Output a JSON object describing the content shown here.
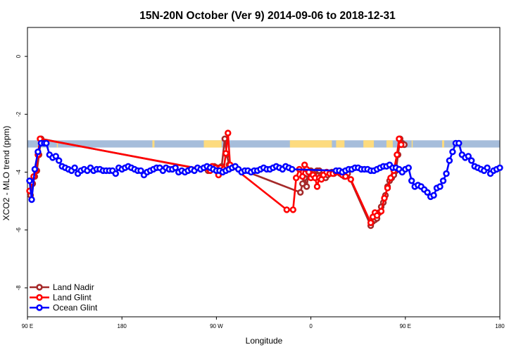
{
  "chart_data": {
    "type": "line",
    "title": "15N-20N October (Ver 9)   2014-09-06 to 2018-12-31",
    "xlabel": "Longitude",
    "ylabel": "XCO2 - MLO trend (ppm)",
    "x_range_deg_east": [
      90,
      450
    ],
    "ylim": [
      -9,
      1
    ],
    "x_ticks": [
      {
        "x": 90,
        "label": "90 E"
      },
      {
        "x": 180,
        "label": "180"
      },
      {
        "x": 270,
        "label": "90 W"
      },
      {
        "x": 360,
        "label": "0"
      },
      {
        "x": 450,
        "label": "90 E"
      },
      {
        "x": 540,
        "label": "180"
      }
    ],
    "y_ticks": [
      {
        "y": 0,
        "label": "0"
      },
      {
        "y": -2,
        "label": "-2"
      },
      {
        "y": -4,
        "label": "-4"
      },
      {
        "y": -6,
        "label": "-6"
      },
      {
        "y": -8,
        "label": "-8"
      }
    ],
    "grid": false,
    "legend_position": "bottom-left",
    "land_ocean_band": {
      "y_range": [
        -3.15,
        -2.9
      ],
      "ocean_color": "#a6bddb",
      "land_color": "#fddb7e",
      "land_segments": [
        [
          118,
          119
        ],
        [
          209,
          211
        ],
        [
          258,
          275
        ],
        [
          340,
          380
        ],
        [
          384,
          392
        ],
        [
          410,
          420
        ],
        [
          432,
          438
        ],
        [
          456,
          457
        ],
        [
          485,
          487
        ]
      ]
    },
    "series": [
      {
        "name": "Land Nadir",
        "color": "#a52a2a",
        "x": [
          93,
          95,
          97,
          99,
          101,
          103,
          262,
          264,
          266,
          268,
          271,
          273,
          275,
          278,
          280,
          282,
          350,
          352,
          354,
          356,
          358,
          360,
          362,
          364,
          366,
          368,
          370,
          372,
          374,
          376,
          378,
          380,
          382,
          384,
          386,
          388,
          390,
          392,
          395,
          417,
          419,
          421,
          423,
          425,
          427,
          429,
          431,
          433,
          435,
          437,
          439,
          441,
          443,
          445,
          447,
          449
        ],
        "y": [
          -4.8,
          -4.4,
          -4.15,
          -3.95,
          -3.4,
          -2.85,
          -3.95,
          -3.9,
          -3.85,
          -3.8,
          -3.85,
          -3.85,
          -3.8,
          -2.85,
          -3.4,
          -3.75,
          -4.7,
          -4.4,
          -4.2,
          -4.5,
          -4.0,
          -3.95,
          -4.1,
          -4.0,
          -3.95,
          -3.95,
          -4.1,
          -4.15,
          -4.2,
          -4.1,
          -4.05,
          -4.0,
          -4.05,
          -4.0,
          -4.0,
          -4.05,
          -4.1,
          -4.15,
          -4.05,
          -5.85,
          -5.7,
          -5.65,
          -5.6,
          -5.4,
          -5.2,
          -5.05,
          -4.8,
          -4.5,
          -4.3,
          -4.2,
          -4.1,
          -3.95,
          -3.4,
          -2.85,
          -3.0,
          -3.05
        ]
      },
      {
        "name": "Land Glint",
        "color": "#ff0000",
        "x": [
          92,
          94,
          96,
          98,
          100,
          102,
          264,
          266,
          269,
          272,
          274,
          277,
          279,
          281,
          283,
          337,
          343,
          346,
          349,
          352,
          354,
          356,
          358,
          360,
          362,
          364,
          366,
          368,
          370,
          372,
          375,
          378,
          381,
          384,
          387,
          390,
          393,
          398,
          417,
          419,
          421,
          423,
          427,
          430,
          433,
          436,
          439,
          442,
          444,
          446
        ],
        "y": [
          -4.65,
          -4.35,
          -4.15,
          -3.95,
          -3.4,
          -2.85,
          -3.95,
          -3.8,
          -3.85,
          -4.1,
          -3.85,
          -3.9,
          -3.35,
          -2.65,
          -3.75,
          -5.3,
          -5.3,
          -4.2,
          -3.9,
          -4.15,
          -3.75,
          -3.9,
          -4.0,
          -4.2,
          -4.1,
          -4.2,
          -4.5,
          -4.2,
          -4.25,
          -4.1,
          -4.0,
          -4.05,
          -4.05,
          -4.0,
          -4.0,
          -4.1,
          -4.15,
          -4.25,
          -5.75,
          -5.55,
          -5.4,
          -5.5,
          -5.35,
          -4.9,
          -4.55,
          -4.2,
          -3.95,
          -3.4,
          -2.85,
          -3.05
        ]
      },
      {
        "name": "Ocean Glint",
        "color": "#0000ff",
        "x": [
          92,
          94,
          97,
          100,
          103,
          106,
          108,
          111,
          114,
          117,
          120,
          123,
          126,
          129,
          132,
          135,
          138,
          141,
          144,
          147,
          150,
          153,
          156,
          159,
          162,
          165,
          168,
          171,
          174,
          177,
          180,
          183,
          186,
          189,
          192,
          195,
          198,
          201,
          204,
          207,
          210,
          213,
          216,
          219,
          222,
          225,
          228,
          231,
          234,
          237,
          240,
          243,
          246,
          249,
          252,
          255,
          258,
          261,
          264,
          267,
          270,
          273,
          276,
          279,
          282,
          285,
          288,
          291,
          294,
          297,
          300,
          303,
          306,
          309,
          312,
          315,
          318,
          321,
          324,
          327,
          330,
          333,
          336,
          339,
          342,
          384,
          387,
          390,
          393,
          396,
          399,
          402,
          405,
          408,
          411,
          414,
          417,
          420,
          423,
          426,
          429,
          432,
          435,
          438,
          441,
          444,
          447,
          450,
          453,
          456,
          459,
          462,
          465,
          468,
          471,
          474,
          477,
          480,
          483,
          486,
          489,
          492,
          495,
          498,
          501,
          504,
          507,
          510,
          513,
          516,
          519,
          522,
          525,
          528,
          531,
          534,
          537,
          540
        ],
        "y": [
          -4.3,
          -4.95,
          -3.9,
          -3.3,
          -3.0,
          -3.0,
          -3.0,
          -3.4,
          -3.5,
          -3.45,
          -3.6,
          -3.8,
          -3.85,
          -3.9,
          -3.95,
          -3.85,
          -4.05,
          -3.95,
          -3.9,
          -3.95,
          -3.85,
          -3.95,
          -3.9,
          -3.9,
          -3.95,
          -3.95,
          -3.95,
          -3.95,
          -4.05,
          -3.85,
          -3.9,
          -3.85,
          -3.8,
          -3.85,
          -3.9,
          -3.95,
          -3.95,
          -4.1,
          -4.0,
          -3.95,
          -3.9,
          -3.85,
          -3.85,
          -3.95,
          -3.85,
          -3.9,
          -3.9,
          -3.85,
          -4.0,
          -3.95,
          -4.0,
          -3.95,
          -3.9,
          -3.95,
          -3.85,
          -3.9,
          -3.85,
          -3.8,
          -3.85,
          -3.9,
          -3.95,
          -3.95,
          -4.0,
          -3.95,
          -3.9,
          -3.85,
          -3.8,
          -3.9,
          -4.0,
          -3.95,
          -3.95,
          -4.0,
          -3.95,
          -3.95,
          -3.9,
          -3.85,
          -3.9,
          -3.9,
          -3.85,
          -3.8,
          -3.85,
          -3.9,
          -3.8,
          -3.85,
          -3.9,
          -3.95,
          -3.95,
          -4.0,
          -3.95,
          -3.9,
          -3.9,
          -3.85,
          -3.85,
          -3.9,
          -3.9,
          -3.9,
          -3.95,
          -3.95,
          -3.9,
          -3.85,
          -3.8,
          -3.8,
          -3.75,
          -3.85,
          -3.85,
          -3.9,
          -4.0,
          -3.9,
          -3.85,
          -4.3,
          -4.5,
          -4.45,
          -4.5,
          -4.6,
          -4.7,
          -4.85,
          -4.8,
          -4.55,
          -4.5,
          -4.3,
          -4.05,
          -3.6,
          -3.3,
          -3.0,
          -3.0,
          -3.4,
          -3.5,
          -3.45,
          -3.6,
          -3.8,
          -3.85,
          -3.9,
          -3.95,
          -3.85,
          -4.05,
          -3.95,
          -3.9,
          -3.85
        ]
      }
    ],
    "legend": [
      {
        "label": "Land Nadir",
        "color": "#a52a2a"
      },
      {
        "label": "Land Glint",
        "color": "#ff0000"
      },
      {
        "label": "Ocean Glint",
        "color": "#0000ff"
      }
    ]
  }
}
